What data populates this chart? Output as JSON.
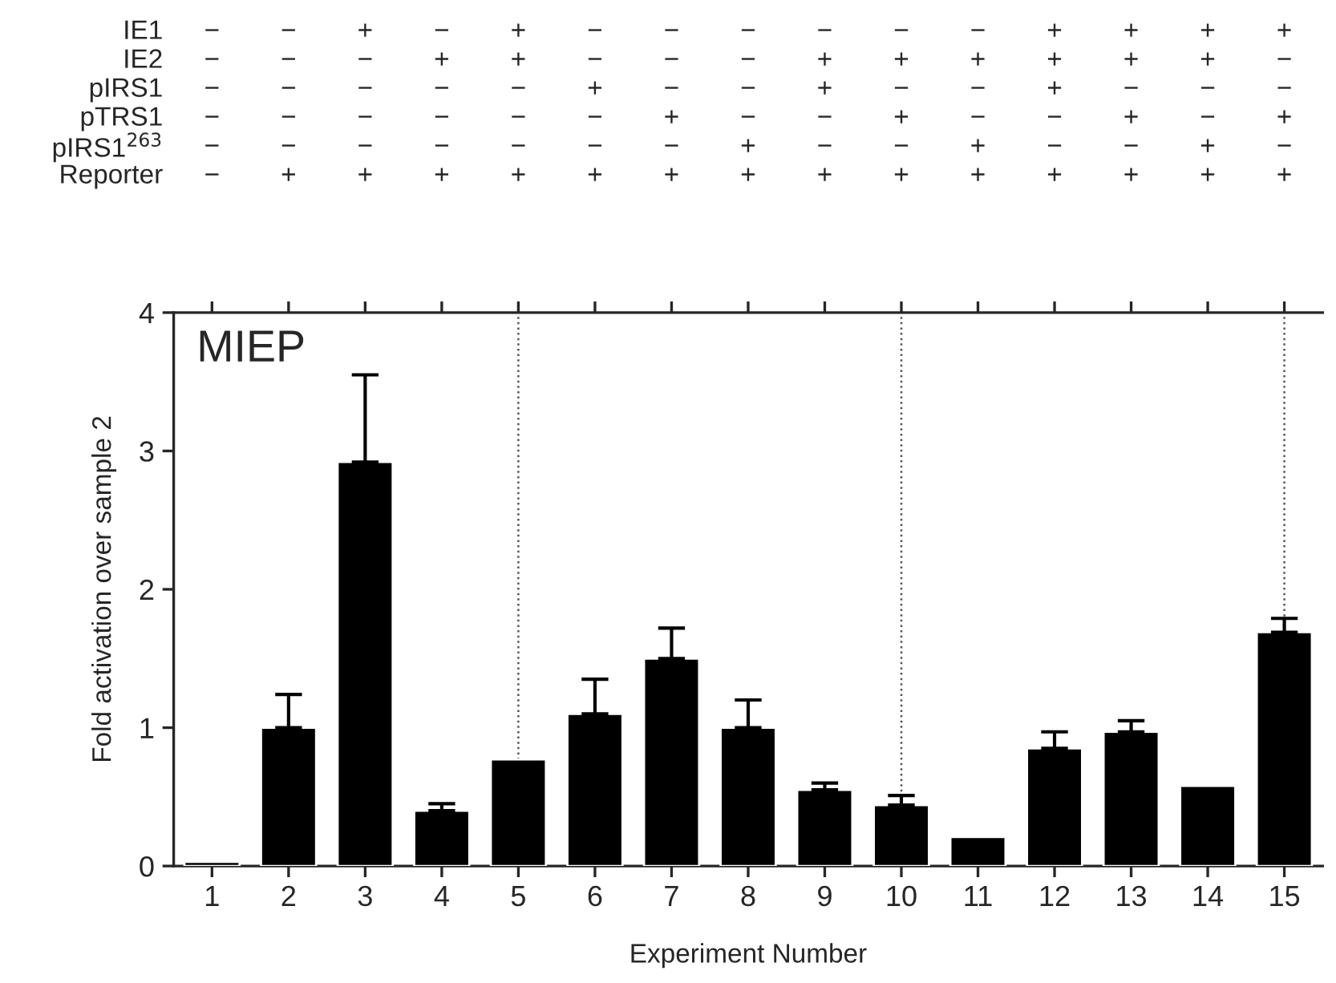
{
  "chart_data": {
    "type": "bar",
    "title": "MIEP",
    "xlabel": "Experiment Number",
    "ylabel": "Fold activation over sample 2",
    "categories": [
      "1",
      "2",
      "3",
      "4",
      "5",
      "6",
      "7",
      "8",
      "9",
      "10",
      "11",
      "12",
      "13",
      "14",
      "15"
    ],
    "values": [
      0.03,
      1.0,
      2.92,
      0.4,
      0.77,
      1.1,
      1.5,
      1.0,
      0.55,
      0.44,
      0.21,
      0.85,
      0.97,
      0.58,
      1.69
    ],
    "errors": [
      null,
      [
        1.0,
        1.24
      ],
      [
        2.92,
        3.55
      ],
      [
        0.4,
        0.45
      ],
      null,
      [
        1.1,
        1.35
      ],
      [
        1.5,
        1.72
      ],
      [
        1.0,
        1.2
      ],
      [
        0.55,
        0.6
      ],
      [
        0.44,
        0.51
      ],
      null,
      [
        0.85,
        0.97
      ],
      [
        0.97,
        1.05
      ],
      null,
      [
        1.69,
        1.79
      ]
    ],
    "color": "#000000",
    "ylim": [
      0,
      4
    ],
    "yticks": [
      0,
      1,
      2,
      3,
      4
    ],
    "ref_lines": [
      {
        "axis": "x",
        "value": "5",
        "line_style": "dotted",
        "color": "#555555"
      },
      {
        "axis": "x",
        "value": "10",
        "line_style": "dotted",
        "color": "#555555"
      },
      {
        "axis": "x",
        "value": "15",
        "line_style": "dotted",
        "color": "#555555"
      }
    ],
    "annotations": [
      "IE1",
      "−",
      "−",
      "+",
      "−",
      "+",
      "−",
      "−",
      "−",
      "−",
      "−",
      "−",
      "+",
      "+",
      "+",
      "+",
      "IE2",
      "−",
      "−",
      "−",
      "+",
      "+",
      "−",
      "−",
      "−",
      "+",
      "+",
      "+",
      "+",
      "+",
      "+",
      "−",
      "pIRS1",
      "−",
      "−",
      "−",
      "−",
      "−",
      "+",
      "−",
      "−",
      "+",
      "−",
      "−",
      "+",
      "−",
      "−",
      "−",
      "pTRS1",
      "−",
      "−",
      "−",
      "−",
      "−",
      "−",
      "+",
      "−",
      "−",
      "+",
      "−",
      "−",
      "+",
      "−",
      "+",
      "pIRS1$^{263}$",
      "−",
      "−",
      "−",
      "−",
      "−",
      "−",
      "−",
      "+",
      "−",
      "−",
      "+",
      "−",
      "−",
      "+",
      "−",
      "Reporter",
      "−",
      "+",
      "+",
      "+",
      "+",
      "+",
      "+",
      "+",
      "+",
      "+",
      "+",
      "+",
      "+",
      "+",
      "+"
    ],
    "grid": false,
    "legend": false
  }
}
